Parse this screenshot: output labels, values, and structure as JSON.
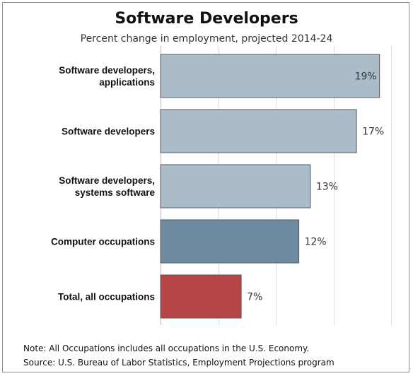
{
  "chart_data": {
    "type": "bar",
    "orientation": "horizontal",
    "title": "Software Developers",
    "subtitle": "Percent change in employment, projected 2014-24",
    "categories": [
      [
        "Software developers,",
        "applications"
      ],
      [
        "Software developers"
      ],
      [
        "Software developers,",
        "systems software"
      ],
      [
        "Computer occupations"
      ],
      [
        "Total, all occupations"
      ]
    ],
    "values": [
      19,
      17,
      13,
      12,
      7
    ],
    "value_labels": [
      "19%",
      "17%",
      "13%",
      "12%",
      "7%"
    ],
    "bar_colors": [
      "#abbcc9",
      "#abbcc9",
      "#abbcc9",
      "#6f8ba1",
      "#b54445"
    ],
    "xlim": [
      0,
      20
    ],
    "vertical_grid": true,
    "xlabel": "",
    "ylabel": ""
  },
  "notes": {
    "note": "Note: All Occupations includes all occupations in the U.S. Economy.",
    "source": "Source: U.S. Bureau of Labor Statistics, Employment Projections program"
  }
}
